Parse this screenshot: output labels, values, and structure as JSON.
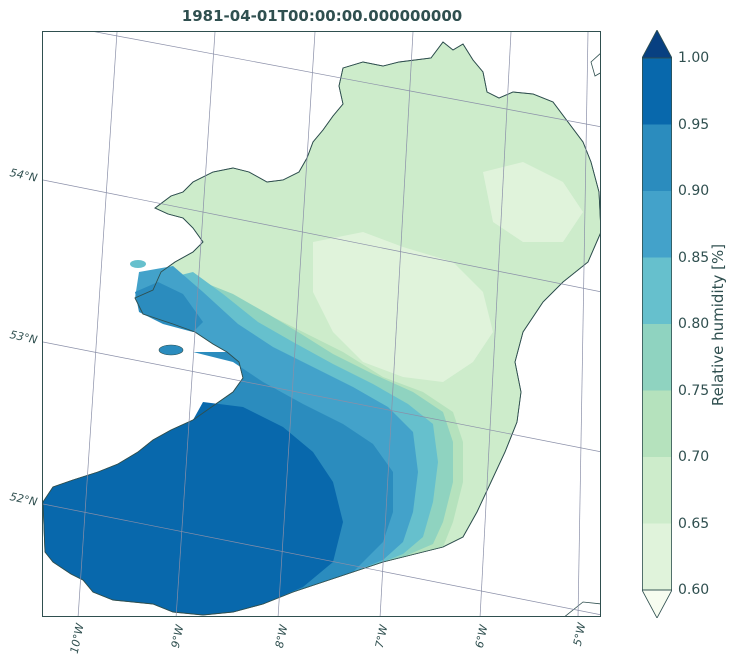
{
  "title": "1981-04-01T00:00:00.000000000",
  "colorbar": {
    "label": "Relative humidity [%]",
    "ticks": [
      "1.00",
      "0.95",
      "0.90",
      "0.85",
      "0.80",
      "0.75",
      "0.70",
      "0.65",
      "0.60"
    ],
    "colors": [
      "#0868ac",
      "#2b8cbe",
      "#43a2ca",
      "#66c0cd",
      "#8fd3c0",
      "#b5e2bd",
      "#cdeccb",
      "#e0f3db"
    ],
    "extend_top_color": "#084081",
    "extend_bottom_color": "#f7fcf0"
  },
  "latitude_labels": [
    "54°N",
    "53°N",
    "52°N"
  ],
  "longitude_labels": [
    "10°W",
    "9°W",
    "8°W",
    "7°W",
    "6°W",
    "5°W"
  ],
  "chart_data": {
    "type": "heatmap",
    "variable": "Relative humidity",
    "units": "[%]",
    "levels": [
      0.6,
      0.65,
      0.7,
      0.75,
      0.8,
      0.85,
      0.9,
      0.95,
      1.0
    ],
    "extend": "both",
    "region": "Ireland",
    "pattern": "highest in the south-west (Kerry/Cork ~0.95-1.00), decreasing north-east to ~0.60-0.70 over the midlands and east"
  }
}
